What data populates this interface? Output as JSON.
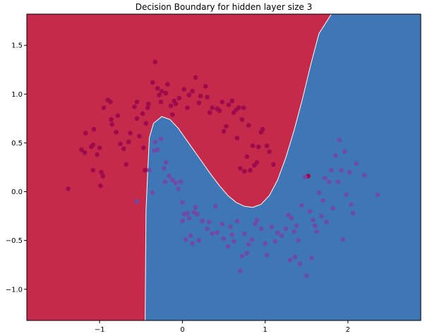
{
  "chart_data": {
    "type": "scatter",
    "title": "Decision Boundary for hidden layer size 3",
    "xlabel": "",
    "ylabel": "",
    "xlim": [
      -1.88,
      2.88
    ],
    "ylim": [
      -1.32,
      1.82
    ],
    "xticks": [
      -1,
      0,
      1,
      2
    ],
    "yticks": [
      -1.0,
      -0.5,
      0.0,
      0.5,
      1.0,
      1.5
    ],
    "xtick_labels": [
      "−1",
      "0",
      "1",
      "2"
    ],
    "ytick_labels": [
      "−1.0",
      "−0.5",
      "0.0",
      "0.5",
      "1.0",
      "1.5"
    ],
    "grid": false,
    "colors": {
      "region_red": "#c52a4b",
      "region_blue": "#3f77b6",
      "point_red": "#9e0a4b",
      "point_blue": "#6e4ba4"
    },
    "decision_boundary": {
      "x": [
        -0.45,
        -0.44,
        -0.42,
        -0.4,
        -0.35,
        -0.25,
        -0.15,
        -0.05,
        0.05,
        0.15,
        0.25,
        0.35,
        0.45,
        0.55,
        0.65,
        0.75,
        0.85,
        0.95,
        1.05,
        1.15,
        1.25,
        1.35,
        1.45,
        1.55,
        1.65,
        1.8
      ],
      "y": [
        -1.32,
        -0.2,
        0.2,
        0.55,
        0.7,
        0.77,
        0.74,
        0.65,
        0.53,
        0.41,
        0.29,
        0.17,
        0.06,
        -0.04,
        -0.11,
        -0.15,
        -0.16,
        -0.13,
        -0.04,
        0.12,
        0.35,
        0.63,
        0.95,
        1.3,
        1.62,
        1.82
      ]
    },
    "series": [
      {
        "class": "red",
        "points": [
          [
            -1.38,
            0.03
          ],
          [
            -1.22,
            0.43
          ],
          [
            -1.18,
            0.4
          ],
          [
            -1.17,
            0.6
          ],
          [
            -1.1,
            0.46
          ],
          [
            -1.08,
            0.48
          ],
          [
            -1.07,
            0.64
          ],
          [
            -1.08,
            0.22
          ],
          [
            -1.03,
            0.38
          ],
          [
            -1.0,
            0.45
          ],
          [
            -0.98,
            0.2
          ],
          [
            -0.96,
            0.16
          ],
          [
            -0.99,
            0.06
          ],
          [
            -0.95,
            0.86
          ],
          [
            -0.9,
            0.94
          ],
          [
            -0.87,
            0.92
          ],
          [
            -0.86,
            0.74
          ],
          [
            -0.85,
            0.69
          ],
          [
            -0.8,
            0.61
          ],
          [
            -0.78,
            0.78
          ],
          [
            -0.75,
            0.49
          ],
          [
            -0.71,
            0.44
          ],
          [
            -0.68,
            0.28
          ],
          [
            -0.65,
            0.51
          ],
          [
            -0.63,
            0.6
          ],
          [
            -0.58,
            0.87
          ],
          [
            -0.55,
            0.75
          ],
          [
            -0.55,
            0.92
          ],
          [
            -0.52,
            0.57
          ],
          [
            -0.48,
            0.8
          ],
          [
            -0.47,
            0.45
          ],
          [
            -0.45,
            0.22
          ],
          [
            -0.44,
            0.7
          ],
          [
            -0.42,
            0.86
          ],
          [
            -0.41,
            0.9
          ],
          [
            -0.36,
            1.12
          ],
          [
            -0.33,
            1.33
          ],
          [
            -0.3,
            1.06
          ],
          [
            -0.28,
            0.99
          ],
          [
            -0.26,
            0.92
          ],
          [
            -0.25,
            1.03
          ],
          [
            -0.2,
            1.01
          ],
          [
            -0.18,
            1.1
          ],
          [
            -0.14,
            0.88
          ],
          [
            -0.12,
            0.79
          ],
          [
            -0.1,
            0.93
          ],
          [
            -0.08,
            0.9
          ],
          [
            -0.04,
            0.96
          ],
          [
            0.02,
            1.05
          ],
          [
            0.06,
            0.86
          ],
          [
            0.08,
            0.99
          ],
          [
            0.12,
            1.03
          ],
          [
            0.16,
            1.17
          ],
          [
            0.2,
            0.91
          ],
          [
            0.22,
            0.98
          ],
          [
            0.28,
            1.08
          ],
          [
            0.3,
            0.97
          ],
          [
            0.33,
            0.81
          ],
          [
            0.36,
            0.86
          ],
          [
            0.42,
            0.85
          ],
          [
            0.45,
            0.83
          ],
          [
            0.48,
            0.92
          ],
          [
            0.5,
            0.62
          ],
          [
            0.53,
            0.67
          ],
          [
            0.56,
            0.89
          ],
          [
            0.6,
            0.93
          ],
          [
            0.62,
            0.81
          ],
          [
            0.65,
            0.84
          ],
          [
            0.66,
            0.55
          ],
          [
            0.68,
            0.86
          ],
          [
            0.7,
            0.24
          ],
          [
            0.72,
            0.74
          ],
          [
            0.74,
            0.86
          ],
          [
            0.75,
            0.21
          ],
          [
            0.78,
            0.36
          ],
          [
            0.8,
            0.68
          ],
          [
            0.82,
            0.22
          ],
          [
            0.85,
            0.47
          ],
          [
            0.87,
            0.27
          ],
          [
            0.9,
            0.3
          ],
          [
            0.92,
            0.46
          ],
          [
            0.95,
            0.61
          ],
          [
            0.97,
            0.64
          ],
          [
            1.02,
            0.47
          ],
          [
            1.05,
            0.41
          ],
          [
            1.1,
            0.28
          ],
          [
            1.52,
            0.16
          ]
        ]
      },
      {
        "class": "blue",
        "points": [
          [
            -0.55,
            -0.1
          ],
          [
            -0.4,
            0.22
          ],
          [
            -0.36,
            -0.01
          ],
          [
            -0.34,
            0.42
          ],
          [
            -0.33,
            0.51
          ],
          [
            -0.3,
            0.43
          ],
          [
            -0.26,
            0.54
          ],
          [
            -0.22,
            0.24
          ],
          [
            -0.21,
            0.1
          ],
          [
            -0.2,
            0.3
          ],
          [
            -0.16,
            0.16
          ],
          [
            -0.12,
            0.12
          ],
          [
            -0.08,
            0.09
          ],
          [
            -0.05,
            0.03
          ],
          [
            -0.02,
            0.1
          ],
          [
            0.0,
            -0.11
          ],
          [
            0.0,
            -0.3
          ],
          [
            0.02,
            -0.23
          ],
          [
            0.04,
            -0.49
          ],
          [
            0.06,
            -0.22
          ],
          [
            0.08,
            -0.27
          ],
          [
            0.1,
            -0.45
          ],
          [
            0.12,
            -0.53
          ],
          [
            0.14,
            -0.21
          ],
          [
            0.16,
            -0.16
          ],
          [
            0.18,
            -0.23
          ],
          [
            0.2,
            -0.5
          ],
          [
            0.24,
            -0.3
          ],
          [
            0.3,
            -0.38
          ],
          [
            0.32,
            -0.31
          ],
          [
            0.36,
            -0.43
          ],
          [
            0.4,
            -0.15
          ],
          [
            0.42,
            -0.42
          ],
          [
            0.48,
            -0.33
          ],
          [
            0.5,
            -0.48
          ],
          [
            0.55,
            -0.56
          ],
          [
            0.58,
            -0.36
          ],
          [
            0.6,
            -0.44
          ],
          [
            0.62,
            -0.51
          ],
          [
            0.66,
            -0.3
          ],
          [
            0.7,
            -0.81
          ],
          [
            0.72,
            -0.66
          ],
          [
            0.75,
            -0.43
          ],
          [
            0.78,
            -0.63
          ],
          [
            0.8,
            -0.54
          ],
          [
            0.84,
            -0.49
          ],
          [
            0.88,
            -0.33
          ],
          [
            0.9,
            -0.29
          ],
          [
            0.95,
            -0.38
          ],
          [
            1.0,
            -0.53
          ],
          [
            1.02,
            -0.65
          ],
          [
            1.08,
            -0.36
          ],
          [
            1.12,
            -0.51
          ],
          [
            1.15,
            -0.42
          ],
          [
            1.2,
            -0.45
          ],
          [
            1.25,
            -0.38
          ],
          [
            1.28,
            -0.24
          ],
          [
            1.3,
            -0.7
          ],
          [
            1.32,
            -0.27
          ],
          [
            1.35,
            -0.41
          ],
          [
            1.36,
            -0.67
          ],
          [
            1.38,
            -0.35
          ],
          [
            1.4,
            -0.5
          ],
          [
            1.42,
            -0.74
          ],
          [
            1.44,
            -0.14
          ],
          [
            1.48,
            0.15
          ],
          [
            1.5,
            -0.86
          ],
          [
            1.54,
            -0.2
          ],
          [
            1.56,
            -0.68
          ],
          [
            1.58,
            -0.29
          ],
          [
            1.6,
            -0.35
          ],
          [
            1.62,
            -0.41
          ],
          [
            1.65,
            -0.01
          ],
          [
            1.68,
            -0.25
          ],
          [
            1.7,
            -0.09
          ],
          [
            1.72,
            0.14
          ],
          [
            1.74,
            -0.31
          ],
          [
            1.77,
            0.1
          ],
          [
            1.8,
            0.22
          ],
          [
            1.82,
            -0.17
          ],
          [
            1.85,
            0.37
          ],
          [
            1.88,
            0.1
          ],
          [
            1.9,
            0.53
          ],
          [
            1.92,
            0.22
          ],
          [
            1.94,
            -0.49
          ],
          [
            1.96,
            0.41
          ],
          [
            1.98,
            -0.03
          ],
          [
            2.02,
            0.2
          ],
          [
            2.04,
            -0.13
          ],
          [
            2.06,
            -0.22
          ],
          [
            2.1,
            0.29
          ],
          [
            2.2,
            0.17
          ],
          [
            2.36,
            -0.03
          ]
        ]
      }
    ]
  }
}
